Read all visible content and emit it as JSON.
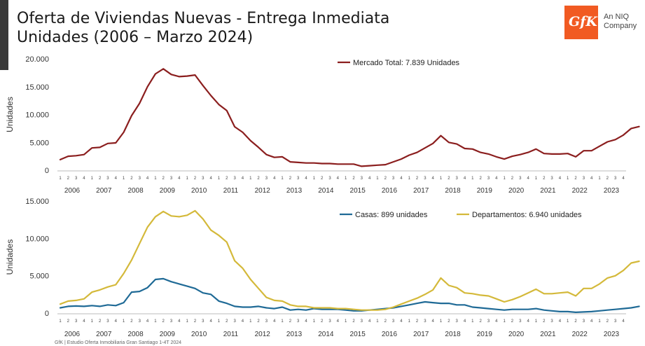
{
  "header": {
    "title_line1": "Oferta de Viviendas Nuevas - Entrega Inmediata",
    "title_line2": "Unidades (2006 – Marzo 2024)",
    "logo_text": "GfK",
    "logo_line1": "An NIQ",
    "logo_line2": "Company"
  },
  "footer": "GfK | Estudio Oferta Inmobiliaria Gran Santiago 1-4T 2024",
  "colors": {
    "total": "#8b1e1e",
    "casas": "#1f6a96",
    "departamentos": "#d4b93a"
  },
  "chart_data": [
    {
      "type": "line",
      "ylabel": "Unidades",
      "ylim": [
        0,
        20000
      ],
      "yticks": [
        "0",
        "5.000",
        "10.000",
        "15.000",
        "20.000"
      ],
      "years": [
        "2006",
        "2007",
        "2008",
        "2009",
        "2010",
        "2011",
        "2012",
        "2013",
        "2014",
        "2015",
        "2016",
        "2017",
        "2018",
        "2019",
        "2020",
        "2021",
        "2022",
        "2023"
      ],
      "quarter_labels": [
        "1",
        "2",
        "3",
        "4"
      ],
      "series": [
        {
          "name": "Mercado Total: 7.839 Unidades",
          "color": "#8b1e1e",
          "values": [
            1900,
            2500,
            2600,
            2800,
            4000,
            4100,
            4800,
            4900,
            6800,
            9800,
            12000,
            15000,
            17300,
            18200,
            17200,
            16800,
            16900,
            17100,
            15200,
            13400,
            11800,
            10700,
            7800,
            6800,
            5300,
            4100,
            2800,
            2300,
            2400,
            1500,
            1400,
            1300,
            1300,
            1200,
            1200,
            1100,
            1100,
            1100,
            700,
            800,
            900,
            1000,
            1500,
            2000,
            2700,
            3200,
            4000,
            4800,
            6200,
            5000,
            4700,
            3900,
            3800,
            3200,
            2900,
            2400,
            2000,
            2500,
            2800,
            3200,
            3800,
            3000,
            2900,
            2900,
            3000,
            2400,
            3500,
            3500,
            4300,
            5100,
            5500,
            6300,
            7500,
            7839
          ]
        }
      ]
    },
    {
      "type": "line",
      "ylabel": "Unidades",
      "ylim": [
        0,
        15000
      ],
      "yticks": [
        "0",
        "5.000",
        "10.000",
        "15.000"
      ],
      "years": [
        "2006",
        "2007",
        "2008",
        "2009",
        "2010",
        "2011",
        "2012",
        "2013",
        "2014",
        "2015",
        "2016",
        "2017",
        "2018",
        "2019",
        "2020",
        "2021",
        "2022",
        "2023"
      ],
      "quarter_labels": [
        "1",
        "2",
        "3",
        "4"
      ],
      "series": [
        {
          "name": "Casas: 899 unidades",
          "color": "#1f6a96",
          "values": [
            700,
            900,
            950,
            900,
            1000,
            900,
            1100,
            1000,
            1400,
            2800,
            2900,
            3400,
            4500,
            4600,
            4200,
            3900,
            3600,
            3300,
            2700,
            2500,
            1600,
            1300,
            900,
            800,
            800,
            900,
            700,
            600,
            800,
            400,
            500,
            400,
            600,
            500,
            500,
            500,
            400,
            300,
            300,
            400,
            500,
            600,
            700,
            900,
            1100,
            1300,
            1500,
            1400,
            1300,
            1300,
            1100,
            1100,
            800,
            700,
            600,
            500,
            400,
            500,
            500,
            500,
            600,
            400,
            300,
            200,
            200,
            100,
            150,
            200,
            300,
            400,
            500,
            600,
            700,
            899
          ]
        },
        {
          "name": "Departamentos: 6.940 unidades",
          "color": "#d4b93a",
          "values": [
            1200,
            1600,
            1700,
            1900,
            2800,
            3100,
            3500,
            3800,
            5300,
            7100,
            9300,
            11500,
            12900,
            13600,
            13000,
            12900,
            13100,
            13700,
            12600,
            11100,
            10400,
            9500,
            7000,
            6000,
            4500,
            3300,
            2100,
            1700,
            1600,
            1100,
            900,
            900,
            700,
            700,
            700,
            600,
            600,
            500,
            400,
            400,
            400,
            500,
            800,
            1200,
            1600,
            2000,
            2500,
            3100,
            4700,
            3700,
            3400,
            2700,
            2600,
            2400,
            2300,
            1900,
            1500,
            1800,
            2200,
            2700,
            3200,
            2600,
            2600,
            2700,
            2800,
            2300,
            3300,
            3300,
            3900,
            4700,
            5000,
            5700,
            6700,
            6940
          ]
        }
      ]
    }
  ]
}
